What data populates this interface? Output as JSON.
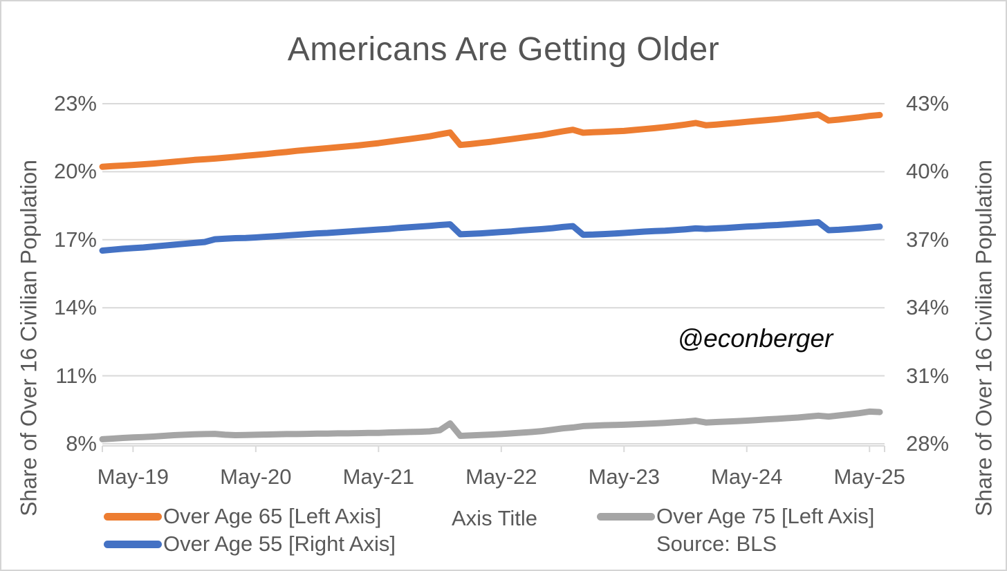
{
  "title": "Americans Are Getting Older",
  "watermark": "@econberger",
  "source": "Source: BLS",
  "axes": {
    "left": {
      "title": "Share of Over 16 Civilian Population",
      "ticks": [
        "23%",
        "20%",
        "17%",
        "14%",
        "11%",
        "8%"
      ],
      "tick_values": [
        23,
        20,
        17,
        14,
        11,
        8
      ],
      "range": [
        8,
        23
      ]
    },
    "right": {
      "title": "Share of Over 16 Civilian Population",
      "ticks": [
        "43%",
        "40%",
        "37%",
        "34%",
        "31%",
        "28%"
      ],
      "tick_values": [
        43,
        40,
        37,
        34,
        31,
        28
      ],
      "range": [
        28,
        43
      ]
    },
    "x": {
      "title": "Axis Title",
      "tick_labels": [
        "May-19",
        "May-20",
        "May-21",
        "May-22",
        "May-23",
        "May-24",
        "May-25"
      ]
    }
  },
  "legend": {
    "items": [
      {
        "label": "Over Age 65 [Left Axis]",
        "color": "#ED7D31"
      },
      {
        "label": "Over Age 55 [Right Axis]",
        "color": "#4472C4"
      },
      {
        "label": "Over Age 75 [Left Axis]",
        "color": "#A5A5A5"
      }
    ]
  },
  "colors": {
    "gridline": "#D9D9D9",
    "axis_line": "#D9D9D9",
    "text": "#595959",
    "title": "#555555",
    "orange": "#ED7D31",
    "blue": "#4472C4",
    "gray": "#A5A5A5"
  },
  "chart_data": {
    "type": "line",
    "title": "Americans Are Getting Older",
    "xlabel": "Axis Title",
    "ylabel_left": "Share of Over 16 Civilian Population",
    "ylabel_right": "Share of Over 16 Civilian Population",
    "ylim_left": [
      8,
      23
    ],
    "ylim_right": [
      28,
      43
    ],
    "grid": true,
    "legend_position": "bottom",
    "x_tick_months": [
      "May-19",
      "May-20",
      "May-21",
      "May-22",
      "May-23",
      "May-24",
      "May-25"
    ],
    "months": [
      "Feb-19",
      "Mar-19",
      "Apr-19",
      "May-19",
      "Jun-19",
      "Jul-19",
      "Aug-19",
      "Sep-19",
      "Oct-19",
      "Nov-19",
      "Dec-19",
      "Jan-20",
      "Feb-20",
      "Mar-20",
      "Apr-20",
      "May-20",
      "Jun-20",
      "Jul-20",
      "Aug-20",
      "Sep-20",
      "Oct-20",
      "Nov-20",
      "Dec-20",
      "Jan-21",
      "Feb-21",
      "Mar-21",
      "Apr-21",
      "May-21",
      "Jun-21",
      "Jul-21",
      "Aug-21",
      "Sep-21",
      "Oct-21",
      "Nov-21",
      "Dec-21",
      "Jan-22",
      "Feb-22",
      "Mar-22",
      "Apr-22",
      "May-22",
      "Jun-22",
      "Jul-22",
      "Aug-22",
      "Sep-22",
      "Oct-22",
      "Nov-22",
      "Dec-22",
      "Jan-23",
      "Feb-23",
      "Mar-23",
      "Apr-23",
      "May-23",
      "Jun-23",
      "Jul-23",
      "Aug-23",
      "Sep-23",
      "Oct-23",
      "Nov-23",
      "Dec-23",
      "Jan-24",
      "Feb-24",
      "Mar-24",
      "Apr-24",
      "May-24",
      "Jun-24",
      "Jul-24",
      "Aug-24",
      "Sep-24",
      "Oct-24",
      "Nov-24",
      "Dec-24",
      "Jan-25",
      "Feb-25",
      "Mar-25",
      "Apr-25",
      "May-25",
      "Jun-25"
    ],
    "series": [
      {
        "name": "Over Age 65 [Left Axis]",
        "axis": "left",
        "color": "#ED7D31",
        "values": [
          20.22,
          20.25,
          20.27,
          20.3,
          20.33,
          20.36,
          20.4,
          20.44,
          20.48,
          20.52,
          20.55,
          20.58,
          20.62,
          20.66,
          20.7,
          20.74,
          20.78,
          20.83,
          20.87,
          20.92,
          20.96,
          21.0,
          21.04,
          21.08,
          21.12,
          21.16,
          21.21,
          21.26,
          21.32,
          21.38,
          21.44,
          21.5,
          21.56,
          21.65,
          21.73,
          21.18,
          21.22,
          21.27,
          21.32,
          21.38,
          21.44,
          21.5,
          21.56,
          21.62,
          21.7,
          21.78,
          21.85,
          21.72,
          21.74,
          21.76,
          21.78,
          21.8,
          21.84,
          21.88,
          21.92,
          21.97,
          22.02,
          22.08,
          22.15,
          22.05,
          22.08,
          22.12,
          22.16,
          22.2,
          22.24,
          22.28,
          22.32,
          22.37,
          22.42,
          22.47,
          22.52,
          22.26,
          22.3,
          22.35,
          22.4,
          22.46,
          22.5
        ]
      },
      {
        "name": "Over Age 55 [Right Axis]",
        "axis": "right",
        "color": "#4472C4",
        "values": [
          36.52,
          36.56,
          36.6,
          36.63,
          36.66,
          36.7,
          36.74,
          36.78,
          36.82,
          36.86,
          36.9,
          37.02,
          37.05,
          37.07,
          37.08,
          37.1,
          37.13,
          37.16,
          37.19,
          37.22,
          37.25,
          37.28,
          37.3,
          37.33,
          37.36,
          37.39,
          37.42,
          37.45,
          37.48,
          37.52,
          37.55,
          37.58,
          37.61,
          37.65,
          37.68,
          37.24,
          37.26,
          37.28,
          37.31,
          37.34,
          37.37,
          37.41,
          37.44,
          37.47,
          37.51,
          37.56,
          37.6,
          37.22,
          37.23,
          37.25,
          37.27,
          37.3,
          37.33,
          37.36,
          37.38,
          37.4,
          37.43,
          37.46,
          37.5,
          37.48,
          37.5,
          37.52,
          37.55,
          37.58,
          37.6,
          37.63,
          37.65,
          37.68,
          37.71,
          37.74,
          37.77,
          37.42,
          37.44,
          37.47,
          37.5,
          37.54,
          37.58
        ]
      },
      {
        "name": "Over Age 75 [Left Axis]",
        "axis": "left",
        "color": "#A5A5A5",
        "values": [
          8.2,
          8.23,
          8.26,
          8.28,
          8.3,
          8.32,
          8.35,
          8.38,
          8.4,
          8.42,
          8.43,
          8.44,
          8.4,
          8.38,
          8.39,
          8.4,
          8.41,
          8.42,
          8.43,
          8.43,
          8.44,
          8.45,
          8.45,
          8.46,
          8.46,
          8.47,
          8.48,
          8.48,
          8.5,
          8.51,
          8.52,
          8.53,
          8.55,
          8.6,
          8.9,
          8.35,
          8.37,
          8.39,
          8.41,
          8.43,
          8.46,
          8.49,
          8.52,
          8.56,
          8.62,
          8.68,
          8.72,
          8.78,
          8.8,
          8.82,
          8.83,
          8.84,
          8.86,
          8.88,
          8.9,
          8.92,
          8.95,
          8.98,
          9.02,
          8.94,
          8.96,
          8.98,
          9.0,
          9.02,
          9.05,
          9.08,
          9.1,
          9.13,
          9.16,
          9.2,
          9.24,
          9.2,
          9.25,
          9.3,
          9.35,
          9.42,
          9.4
        ]
      }
    ]
  }
}
